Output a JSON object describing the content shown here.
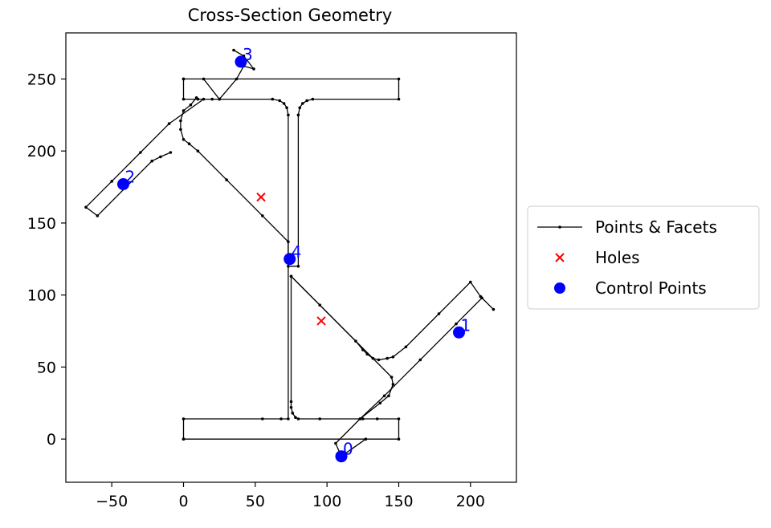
{
  "chart_data": {
    "type": "line",
    "title": "Cross-Section Geometry",
    "xlabel": "",
    "ylabel": "",
    "xlim": [
      -82,
      232
    ],
    "ylim": [
      -30,
      282
    ],
    "xticks": [
      -50,
      0,
      50,
      100,
      150,
      200
    ],
    "yticks": [
      0,
      50,
      100,
      150,
      200,
      250
    ],
    "xtick_labels": [
      "−50",
      "0",
      "50",
      "100",
      "150",
      "200"
    ],
    "ytick_labels": [
      "0",
      "50",
      "100",
      "150",
      "200",
      "250"
    ],
    "grid": false,
    "legend_position": "center-right, outside plot",
    "colors": {
      "facets": "#000000",
      "holes": "#ff0000",
      "control_points": "#0000ff"
    },
    "series": [
      {
        "name": "Points & Facets",
        "kind": "polyline",
        "polylines": [
          [
            [
              0,
              0
            ],
            [
              150,
              0
            ],
            [
              150,
              14
            ],
            [
              135,
              14
            ],
            [
              125,
              14
            ],
            [
              95,
              14
            ],
            [
              80,
              14
            ],
            [
              78,
              15
            ],
            [
              76,
              18
            ],
            [
              75,
              22
            ],
            [
              75,
              26
            ],
            [
              75,
              113
            ],
            [
              95,
              93
            ],
            [
              120,
              68
            ],
            [
              125,
              62
            ],
            [
              128,
              59
            ],
            [
              132,
              56
            ],
            [
              136,
              55
            ],
            [
              142,
              56
            ],
            [
              146,
              57
            ],
            [
              155,
              64
            ],
            [
              178,
              87
            ],
            [
              200,
              109
            ],
            [
              207,
              99
            ],
            [
              216,
              90
            ],
            [
              208,
              98
            ],
            [
              190,
              80
            ],
            [
              165,
              55
            ],
            [
              140,
              30
            ],
            [
              123,
              14
            ],
            [
              106,
              -3
            ],
            [
              110,
              -12
            ],
            [
              127,
              0
            ]
          ],
          [
            [
              0,
              250
            ],
            [
              150,
              250
            ],
            [
              150,
              236
            ],
            [
              90,
              236
            ],
            [
              86,
              235
            ],
            [
              83,
              233
            ],
            [
              81,
              230
            ],
            [
              80,
              225
            ],
            [
              80,
              120
            ],
            [
              73,
              120
            ],
            [
              73,
              225
            ],
            [
              72,
              230
            ],
            [
              70,
              233
            ],
            [
              67,
              235
            ],
            [
              62,
              236
            ],
            [
              25,
              236
            ],
            [
              20,
              236
            ],
            [
              10,
              236
            ],
            [
              0,
              236
            ],
            [
              0,
              250
            ]
          ],
          [
            [
              14,
              250
            ],
            [
              25,
              236
            ],
            [
              37,
              250
            ],
            [
              42,
              259
            ],
            [
              49,
              257
            ],
            [
              42,
              266
            ],
            [
              35,
              270
            ]
          ],
          [
            [
              9,
              237
            ],
            [
              5,
              232
            ],
            [
              0,
              228
            ],
            [
              -2,
              221
            ],
            [
              -2,
              215
            ],
            [
              0,
              208
            ],
            [
              4,
              205
            ],
            [
              10,
              200
            ],
            [
              30,
              180
            ],
            [
              55,
              155
            ],
            [
              73,
              137
            ],
            [
              73,
              14
            ],
            [
              68,
              14
            ],
            [
              55,
              14
            ],
            [
              0,
              14
            ],
            [
              0,
              0
            ]
          ],
          [
            [
              -9,
              199
            ],
            [
              -16,
              196
            ],
            [
              -22,
              193
            ],
            [
              -60,
              155
            ],
            [
              -68,
              161
            ],
            [
              -50,
              179
            ],
            [
              -30,
              199
            ],
            [
              -10,
              219
            ],
            [
              14,
              236
            ]
          ],
          [
            [
              75,
              113
            ],
            [
              145,
              43
            ],
            [
              146,
              38
            ],
            [
              143,
              30
            ],
            [
              137,
              25
            ],
            [
              123,
              14
            ]
          ]
        ]
      },
      {
        "name": "Holes",
        "kind": "scatter",
        "marker": "x",
        "points": [
          [
            54,
            168
          ],
          [
            96,
            82
          ]
        ]
      },
      {
        "name": "Control Points",
        "kind": "scatter",
        "marker": "o",
        "points": [
          [
            110,
            -12
          ],
          [
            192,
            74
          ],
          [
            -42,
            177
          ],
          [
            40,
            262
          ],
          [
            74,
            125
          ]
        ],
        "labels": [
          "0",
          "1",
          "2",
          "3",
          "4"
        ]
      }
    ]
  }
}
